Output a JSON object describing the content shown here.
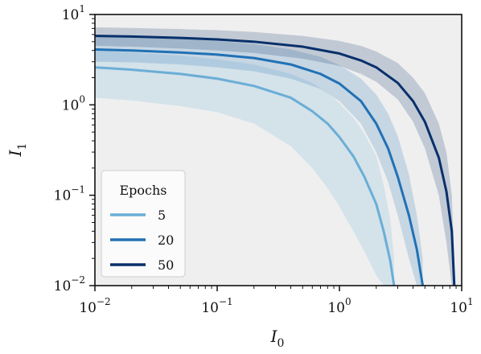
{
  "chart_data": {
    "type": "line",
    "xscale": "log",
    "yscale": "log",
    "xlim": [
      0.01,
      10
    ],
    "ylim": [
      0.01,
      10
    ],
    "xlabel": "I0",
    "ylabel": "I1",
    "x_ticks": [
      {
        "value": 0.01,
        "base": "10",
        "exp": "−2"
      },
      {
        "value": 0.1,
        "base": "10",
        "exp": "−1"
      },
      {
        "value": 1,
        "base": "10",
        "exp": "0"
      },
      {
        "value": 10,
        "base": "10",
        "exp": "1"
      }
    ],
    "y_ticks": [
      {
        "value": 0.01,
        "base": "10",
        "exp": "−2"
      },
      {
        "value": 0.1,
        "base": "10",
        "exp": "−1"
      },
      {
        "value": 1,
        "base": "10",
        "exp": "0"
      },
      {
        "value": 10,
        "base": "10",
        "exp": "1"
      }
    ],
    "grid": false,
    "background_color": "#efefef",
    "legend": {
      "title": "Epochs",
      "placement": "lower-left"
    },
    "series": [
      {
        "name": "5",
        "color": "#6aaed6",
        "band_color": "#6aaed6",
        "x": [
          0.01,
          0.02,
          0.05,
          0.1,
          0.2,
          0.4,
          0.6,
          0.8,
          1.0,
          1.3,
          1.6,
          2.0,
          2.3,
          2.6,
          2.8
        ],
        "y": [
          2.6,
          2.45,
          2.2,
          1.95,
          1.62,
          1.2,
          0.85,
          0.62,
          0.44,
          0.27,
          0.16,
          0.08,
          0.04,
          0.019,
          0.01
        ],
        "lower": [
          1.2,
          1.12,
          0.97,
          0.83,
          0.62,
          0.35,
          0.2,
          0.12,
          0.075,
          0.04,
          0.024,
          0.013,
          0.01,
          0.01,
          0.01
        ],
        "upper": [
          4.0,
          3.8,
          3.5,
          3.2,
          2.8,
          2.2,
          1.75,
          1.35,
          1.05,
          0.72,
          0.48,
          0.27,
          0.13,
          0.055,
          0.02
        ]
      },
      {
        "name": "20",
        "color": "#2171b5",
        "band_color": "#2171b5",
        "x": [
          0.01,
          0.02,
          0.05,
          0.1,
          0.2,
          0.4,
          0.7,
          1.0,
          1.5,
          2.0,
          2.5,
          3.0,
          3.7,
          4.3,
          4.8
        ],
        "y": [
          4.1,
          4.0,
          3.8,
          3.6,
          3.3,
          2.8,
          2.2,
          1.72,
          1.1,
          0.62,
          0.33,
          0.16,
          0.06,
          0.025,
          0.01
        ],
        "lower": [
          3.0,
          2.95,
          2.8,
          2.6,
          2.35,
          1.95,
          1.5,
          1.1,
          0.62,
          0.3,
          0.14,
          0.06,
          0.02,
          0.01,
          0.01
        ],
        "upper": [
          5.8,
          5.7,
          5.4,
          5.1,
          4.7,
          4.1,
          3.4,
          2.75,
          1.95,
          1.3,
          0.8,
          0.45,
          0.17,
          0.06,
          0.02
        ]
      },
      {
        "name": "50",
        "color": "#08306b",
        "band_color": "#08306b",
        "x": [
          0.01,
          0.02,
          0.05,
          0.1,
          0.2,
          0.5,
          1.0,
          1.5,
          2.0,
          3.0,
          4.0,
          5.0,
          6.5,
          7.5,
          8.3,
          8.7
        ],
        "y": [
          5.8,
          5.7,
          5.5,
          5.3,
          5.0,
          4.4,
          3.7,
          3.1,
          2.6,
          1.75,
          1.1,
          0.65,
          0.26,
          0.11,
          0.04,
          0.01
        ],
        "lower": [
          4.5,
          4.4,
          4.2,
          4.0,
          3.75,
          3.25,
          2.7,
          2.2,
          1.8,
          1.15,
          0.65,
          0.33,
          0.1,
          0.03,
          0.01,
          0.01
        ],
        "upper": [
          7.2,
          7.1,
          6.9,
          6.7,
          6.4,
          5.8,
          5.1,
          4.5,
          3.9,
          2.9,
          2.0,
          1.35,
          0.62,
          0.3,
          0.1,
          0.02
        ]
      }
    ]
  }
}
